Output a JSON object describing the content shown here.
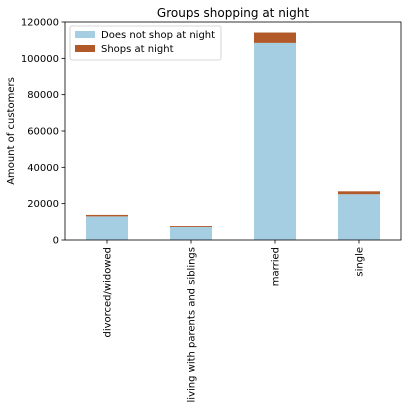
{
  "chart_data": {
    "type": "bar",
    "stacked": true,
    "title": "Groups shopping at night",
    "xlabel": "",
    "ylabel": "Amount of customers",
    "categories": [
      "divorced/widowed",
      "living with parents and siblings",
      "married",
      "single"
    ],
    "series": [
      {
        "name": "Does not shop at night",
        "values": [
          13000,
          7200,
          108500,
          25200
        ],
        "color": "#a6cee3"
      },
      {
        "name": "Shops at night",
        "values": [
          800,
          500,
          5700,
          1600
        ],
        "color": "#b15928"
      }
    ],
    "ylim": [
      0,
      120000
    ],
    "yticks": [
      "0",
      "20000",
      "40000",
      "60000",
      "80000",
      "100000",
      "120000"
    ],
    "legend_position": "upper-left",
    "grid": false
  }
}
